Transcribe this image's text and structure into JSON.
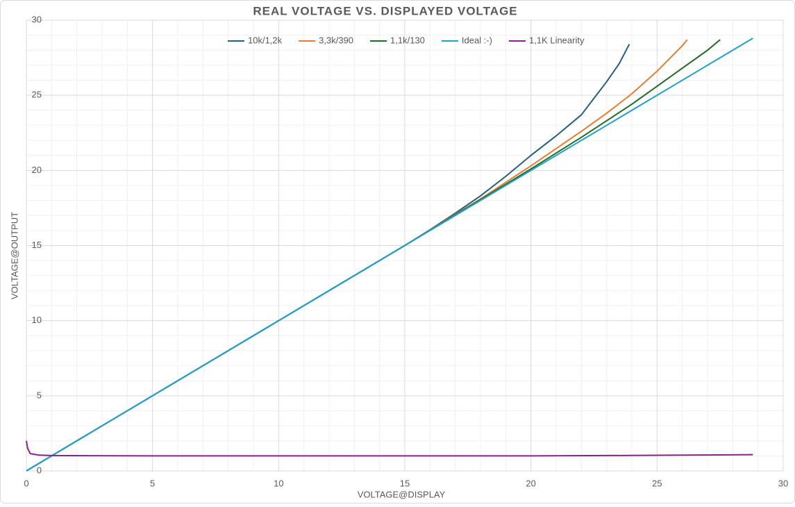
{
  "chart_data": {
    "type": "line",
    "title": "REAL VOLTAGE VS. DISPLAYED VOLTAGE",
    "x_label": "VOLTAGE@DISPLAY",
    "y_label": "VOLTAGE@OUTPUT",
    "xlim": [
      0,
      30
    ],
    "xticks": [
      0,
      5,
      10,
      15,
      20,
      25,
      30
    ],
    "ylim": [
      0,
      30
    ],
    "yticks": [
      0,
      5,
      10,
      15,
      20,
      25,
      30
    ],
    "grid": true,
    "minor_grid": true,
    "legend": "top",
    "series": [
      {
        "name": "10k/1,2k",
        "color": "#215f80",
        "x": [
          0,
          5,
          10,
          15,
          16,
          17,
          18,
          19,
          20,
          21,
          22,
          22.5,
          23,
          23.5,
          23.9
        ],
        "values": [
          0,
          5,
          10,
          15,
          16.05,
          17.15,
          18.3,
          19.6,
          21.0,
          22.3,
          23.7,
          24.8,
          25.9,
          27.1,
          28.4
        ]
      },
      {
        "name": "3,3k/390",
        "color": "#e97b30",
        "x": [
          0,
          5,
          10,
          15,
          18,
          20,
          22,
          23,
          24,
          25,
          26,
          26.2
        ],
        "values": [
          0,
          5,
          10,
          15,
          18.1,
          20.3,
          22.6,
          23.8,
          25.1,
          26.6,
          28.3,
          28.7
        ]
      },
      {
        "name": "1,1k/130",
        "color": "#1e6b22",
        "x": [
          0,
          5,
          10,
          15,
          18,
          20,
          22,
          24,
          25,
          26,
          27,
          27.5
        ],
        "values": [
          0,
          5,
          10,
          15,
          18.05,
          20.1,
          22.2,
          24.4,
          25.6,
          26.8,
          28.0,
          28.7
        ]
      },
      {
        "name": "Ideal :-)",
        "color": "#1ea0d2",
        "x": [
          0,
          28.8
        ],
        "values": [
          0,
          28.8
        ]
      },
      {
        "name": "1,1K Linearity",
        "color": "#8b1f8f",
        "x": [
          0,
          0.05,
          0.15,
          0.5,
          1,
          5,
          10,
          15,
          20,
          23,
          25,
          27,
          28.8
        ],
        "values": [
          2.0,
          1.5,
          1.15,
          1.05,
          1.02,
          1.0,
          1.0,
          1.0,
          1.0,
          1.02,
          1.04,
          1.06,
          1.08
        ]
      }
    ]
  }
}
